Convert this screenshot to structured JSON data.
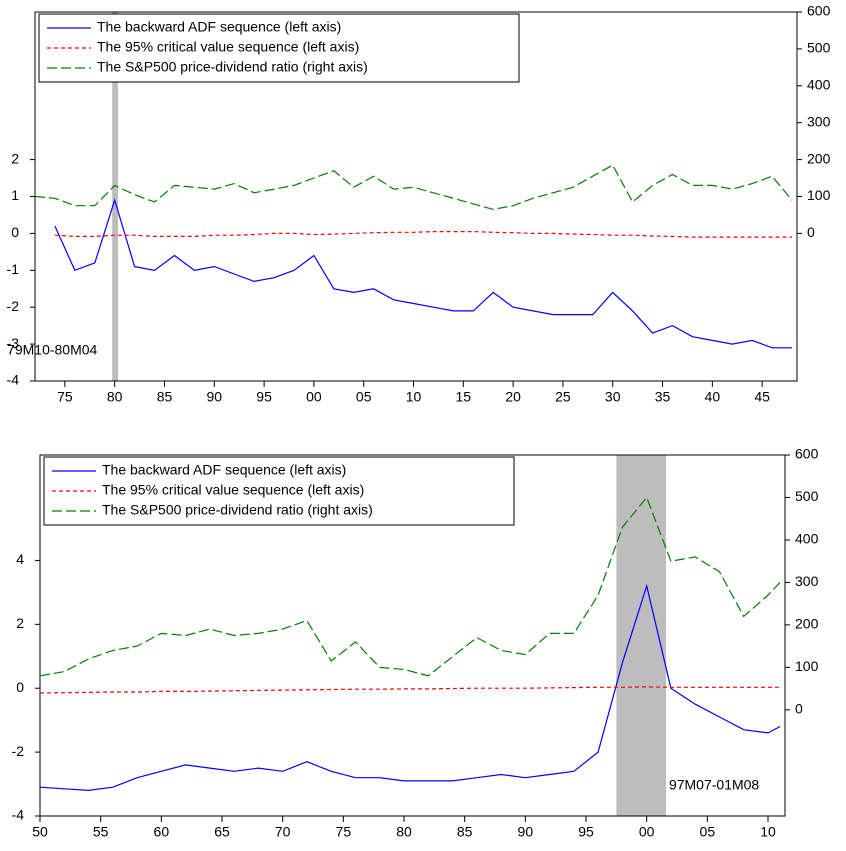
{
  "chart_data": [
    {
      "type": "line",
      "legend": "upper left",
      "ylim": [
        -4,
        6
      ],
      "yticks": [
        -4,
        -3,
        -2,
        -1,
        0,
        1,
        2
      ],
      "y2lim": [
        -400,
        600
      ],
      "y2ticks": [
        0,
        100,
        200,
        300,
        400,
        500,
        600
      ],
      "xlim": [
        1872,
        1948.5
      ],
      "xticks": [
        {
          "value": 1875,
          "label": "75"
        },
        {
          "value": 1880,
          "label": "80"
        },
        {
          "value": 1885,
          "label": "85"
        },
        {
          "value": 1890,
          "label": "90"
        },
        {
          "value": 1895,
          "label": "95"
        },
        {
          "value": 1900,
          "label": "00"
        },
        {
          "value": 1905,
          "label": "05"
        },
        {
          "value": 1910,
          "label": "10"
        },
        {
          "value": 1915,
          "label": "15"
        },
        {
          "value": 1920,
          "label": "20"
        },
        {
          "value": 1925,
          "label": "25"
        },
        {
          "value": 1930,
          "label": "30"
        },
        {
          "value": 1935,
          "label": "35"
        },
        {
          "value": 1940,
          "label": "40"
        },
        {
          "value": 1945,
          "label": "45"
        }
      ],
      "shade": {
        "from": 1879.75,
        "to": 1880.33,
        "label": "79M10-80M04"
      },
      "x": [
        1872,
        1874,
        1876,
        1878,
        1880,
        1882,
        1884,
        1886,
        1888,
        1890,
        1892,
        1894,
        1896,
        1898,
        1900,
        1902,
        1904,
        1906,
        1908,
        1910,
        1912,
        1914,
        1916,
        1918,
        1920,
        1922,
        1924,
        1926,
        1928,
        1930,
        1932,
        1934,
        1936,
        1938,
        1940,
        1942,
        1944,
        1946,
        1948
      ],
      "series": [
        {
          "name": "The backward ADF sequence (left axis)",
          "color": "#0000ff",
          "dash": "none",
          "values": [
            null,
            0.2,
            -1.0,
            -0.8,
            0.9,
            -0.9,
            -1.0,
            -0.6,
            -1.0,
            -0.9,
            -1.1,
            -1.3,
            -1.2,
            -1.0,
            -0.6,
            -1.5,
            -1.6,
            -1.5,
            -1.8,
            -1.9,
            -2.0,
            -2.1,
            -2.1,
            -1.6,
            -2.0,
            -2.1,
            -2.2,
            -2.2,
            -2.2,
            -1.6,
            -2.1,
            -2.7,
            -2.5,
            -2.8,
            -2.9,
            -3.0,
            -2.9,
            -3.1,
            -3.1
          ]
        },
        {
          "name": "The 95% critical value sequence (left axis)",
          "color": "#ff0000",
          "dash": "4,3",
          "values": [
            null,
            -0.05,
            -0.08,
            -0.08,
            -0.05,
            -0.05,
            -0.08,
            -0.08,
            -0.08,
            -0.05,
            -0.05,
            -0.03,
            0,
            0,
            -0.03,
            -0.02,
            0,
            0.02,
            0.03,
            0.03,
            0.05,
            0.05,
            0.05,
            0.03,
            0.02,
            0,
            0,
            -0.02,
            -0.03,
            -0.05,
            -0.05,
            -0.07,
            -0.08,
            -0.1,
            -0.1,
            -0.1,
            -0.1,
            -0.1,
            -0.1
          ]
        },
        {
          "name": "The S&P500 price-dividend ratio (right axis)",
          "color": "#008000",
          "dash": "10,4",
          "axis": "y2",
          "values": [
            100,
            95,
            75,
            75,
            130,
            105,
            85,
            130,
            125,
            120,
            135,
            110,
            120,
            130,
            150,
            170,
            125,
            155,
            120,
            125,
            110,
            95,
            80,
            65,
            75,
            95,
            110,
            125,
            155,
            185,
            85,
            130,
            160,
            130,
            130,
            120,
            135,
            155,
            90
          ]
        }
      ]
    },
    {
      "type": "line",
      "legend": "upper left",
      "ylim": [
        -4,
        7.3
      ],
      "yticks": [
        -4,
        -2,
        0,
        2,
        4
      ],
      "y2lim": [
        -250,
        600
      ],
      "y2ticks": [
        0,
        100,
        200,
        300,
        400,
        500,
        600
      ],
      "xlim": [
        1950,
        2011.4
      ],
      "xticks": [
        {
          "value": 1950,
          "label": "50"
        },
        {
          "value": 1955,
          "label": "55"
        },
        {
          "value": 1960,
          "label": "60"
        },
        {
          "value": 1965,
          "label": "65"
        },
        {
          "value": 1970,
          "label": "70"
        },
        {
          "value": 1975,
          "label": "75"
        },
        {
          "value": 1980,
          "label": "80"
        },
        {
          "value": 1985,
          "label": "85"
        },
        {
          "value": 1990,
          "label": "90"
        },
        {
          "value": 1995,
          "label": "95"
        },
        {
          "value": 2000,
          "label": "00"
        },
        {
          "value": 2005,
          "label": "05"
        },
        {
          "value": 2010,
          "label": "10"
        }
      ],
      "shade": {
        "from": 1997.5,
        "to": 2001.6,
        "label": "97M07-01M08"
      },
      "x": [
        1950,
        1952,
        1954,
        1956,
        1958,
        1960,
        1962,
        1964,
        1966,
        1968,
        1970,
        1972,
        1974,
        1976,
        1978,
        1980,
        1982,
        1984,
        1986,
        1988,
        1990,
        1992,
        1994,
        1996,
        1998,
        2000,
        2002,
        2004,
        2006,
        2008,
        2010,
        2011
      ],
      "series": [
        {
          "name": "The backward ADF sequence (left axis)",
          "color": "#0000ff",
          "dash": "none",
          "values": [
            -3.1,
            -3.15,
            -3.2,
            -3.1,
            -2.8,
            -2.6,
            -2.4,
            -2.5,
            -2.6,
            -2.5,
            -2.6,
            -2.3,
            -2.6,
            -2.8,
            -2.8,
            -2.9,
            -2.9,
            -2.9,
            -2.8,
            -2.7,
            -2.8,
            -2.7,
            -2.6,
            -2.0,
            0.8,
            3.2,
            0.0,
            -0.5,
            -0.9,
            -1.3,
            -1.4,
            -1.2
          ]
        },
        {
          "name": "The 95% critical value sequence (left axis)",
          "color": "#ff0000",
          "dash": "4,3",
          "values": [
            -0.15,
            -0.14,
            -0.13,
            -0.12,
            -0.12,
            -0.1,
            -0.1,
            -0.09,
            -0.08,
            -0.07,
            -0.06,
            -0.05,
            -0.04,
            -0.03,
            -0.03,
            -0.02,
            -0.02,
            -0.01,
            0,
            0,
            0,
            0.01,
            0.02,
            0.03,
            0.03,
            0.04,
            0.03,
            0.03,
            0.03,
            0.03,
            0.03,
            0.03
          ]
        },
        {
          "name": "The S&P500 price-dividend ratio (right axis)",
          "color": "#008000",
          "dash": "10,4",
          "axis": "y2",
          "values": [
            80,
            90,
            120,
            140,
            150,
            180,
            175,
            190,
            175,
            180,
            190,
            210,
            115,
            160,
            100,
            95,
            80,
            125,
            170,
            140,
            130,
            180,
            180,
            270,
            430,
            500,
            350,
            360,
            325,
            220,
            270,
            300
          ]
        }
      ]
    }
  ]
}
